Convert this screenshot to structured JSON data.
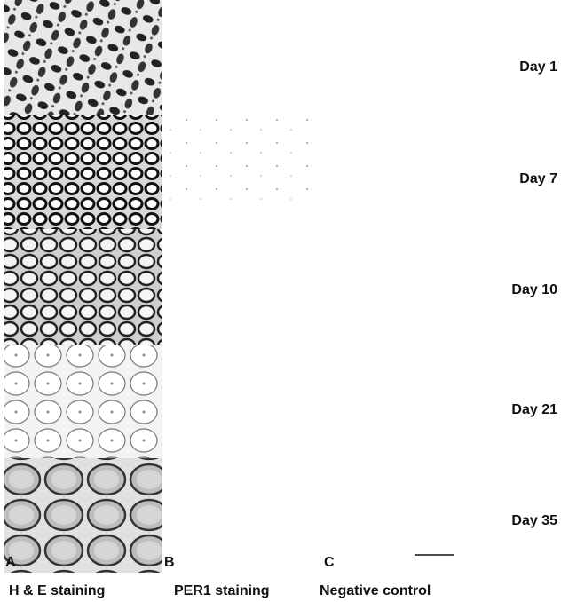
{
  "panels": [
    {
      "letter": "A",
      "label": "H & E staining"
    },
    {
      "letter": "B",
      "label": "PER1 staining"
    },
    {
      "letter": "C",
      "label": "Negative control"
    }
  ],
  "rows": [
    "Day 1",
    "Day 7",
    "Day 10",
    "Day 21",
    "Day 35"
  ]
}
